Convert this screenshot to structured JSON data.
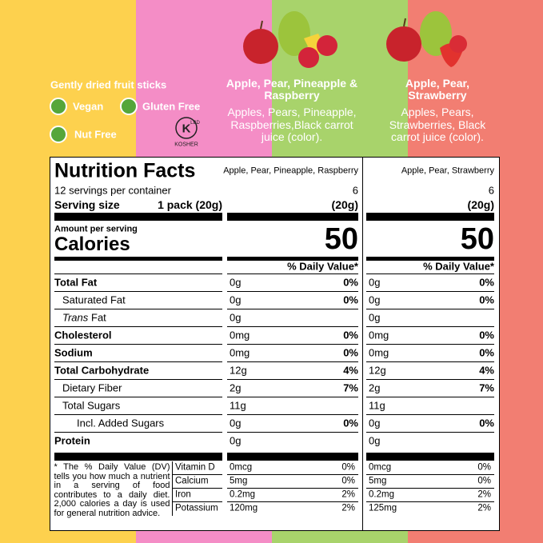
{
  "header": {
    "tagline": "Gently dried fruit sticks",
    "badges": [
      "Vegan",
      "Gluten Free",
      "Nut Free"
    ],
    "kosher": {
      "mark": "K",
      "sub": "LBD",
      "label": "KOSHER"
    }
  },
  "products": [
    {
      "title": "Apple, Pear, Pineapple & Raspberry",
      "ingredients": "Apples, Pears, Pineapple, Raspberries,Black carrot juice (color)."
    },
    {
      "title": "Apple, Pear, Strawberry",
      "ingredients": "Apples, Pears, Strawberries, Black carrot juice (color)."
    }
  ],
  "label": {
    "title": "Nutrition Facts",
    "servings_per_container": "12 servings per container",
    "serving_size_label": "Serving size",
    "serving_size": "1 pack (20g)",
    "amount_per_serving": "Amount per serving",
    "calories_label": "Calories",
    "daily_value_header": "% Daily Value*",
    "columns": [
      {
        "name": "Apple, Pear, Pineapple, Raspberry",
        "servings": 6,
        "serving_size": "(20g)",
        "calories": 50
      },
      {
        "name": "Apple, Pear, Strawberry",
        "servings": 6,
        "serving_size": "(20g)",
        "calories": 50
      }
    ],
    "nutrients": [
      {
        "name": "Total Fat",
        "bold": true,
        "indent": 0,
        "amounts": [
          "0g",
          "0g"
        ],
        "dv": [
          "0%",
          "0%"
        ]
      },
      {
        "name": "Saturated Fat",
        "bold": false,
        "indent": 1,
        "amounts": [
          "0g",
          "0g"
        ],
        "dv": [
          "0%",
          "0%"
        ]
      },
      {
        "name_italic": "Trans",
        "name": "Fat",
        "bold": false,
        "indent": 1,
        "amounts": [
          "0g",
          "0g"
        ],
        "dv": [
          null,
          null
        ]
      },
      {
        "name": "Cholesterol",
        "bold": true,
        "indent": 0,
        "amounts": [
          "0mg",
          "0mg"
        ],
        "dv": [
          "0%",
          "0%"
        ]
      },
      {
        "name": "Sodium",
        "bold": true,
        "indent": 0,
        "amounts": [
          "0mg",
          "0mg"
        ],
        "dv": [
          "0%",
          "0%"
        ]
      },
      {
        "name": "Total Carbohydrate",
        "bold": true,
        "indent": 0,
        "amounts": [
          "12g",
          "12g"
        ],
        "dv": [
          "4%",
          "4%"
        ]
      },
      {
        "name": "Dietary Fiber",
        "bold": false,
        "indent": 1,
        "amounts": [
          "2g",
          "2g"
        ],
        "dv": [
          "7%",
          "7%"
        ]
      },
      {
        "name": "Total Sugars",
        "bold": false,
        "indent": 1,
        "amounts": [
          "11g",
          "11g"
        ],
        "dv": [
          null,
          null
        ]
      },
      {
        "name": "Incl. Added Sugars",
        "bold": false,
        "indent": 2,
        "amounts": [
          "0g",
          "0g"
        ],
        "dv": [
          "0%",
          "0%"
        ]
      },
      {
        "name": "Protein",
        "bold": true,
        "indent": 0,
        "amounts": [
          "0g",
          "0g"
        ],
        "dv": [
          null,
          null
        ]
      }
    ],
    "footnote": "* The % Daily Value (DV) tells you how much a nutrient in a serving of food contributes to a daily diet. 2,000 calories a day is used for general nutrition advice.",
    "micronutrients": [
      {
        "name": "Vitamin D",
        "amounts": [
          "0mcg",
          "0mcg"
        ],
        "dv": [
          "0%",
          "0%"
        ]
      },
      {
        "name": "Calcium",
        "amounts": [
          "5mg",
          "5mg"
        ],
        "dv": [
          "0%",
          "0%"
        ]
      },
      {
        "name": "Iron",
        "amounts": [
          "0.2mg",
          "0.2mg"
        ],
        "dv": [
          "2%",
          "2%"
        ]
      },
      {
        "name": "Potassium",
        "amounts": [
          "120mg",
          "125mg"
        ],
        "dv": [
          "2%",
          "2%"
        ]
      }
    ]
  }
}
